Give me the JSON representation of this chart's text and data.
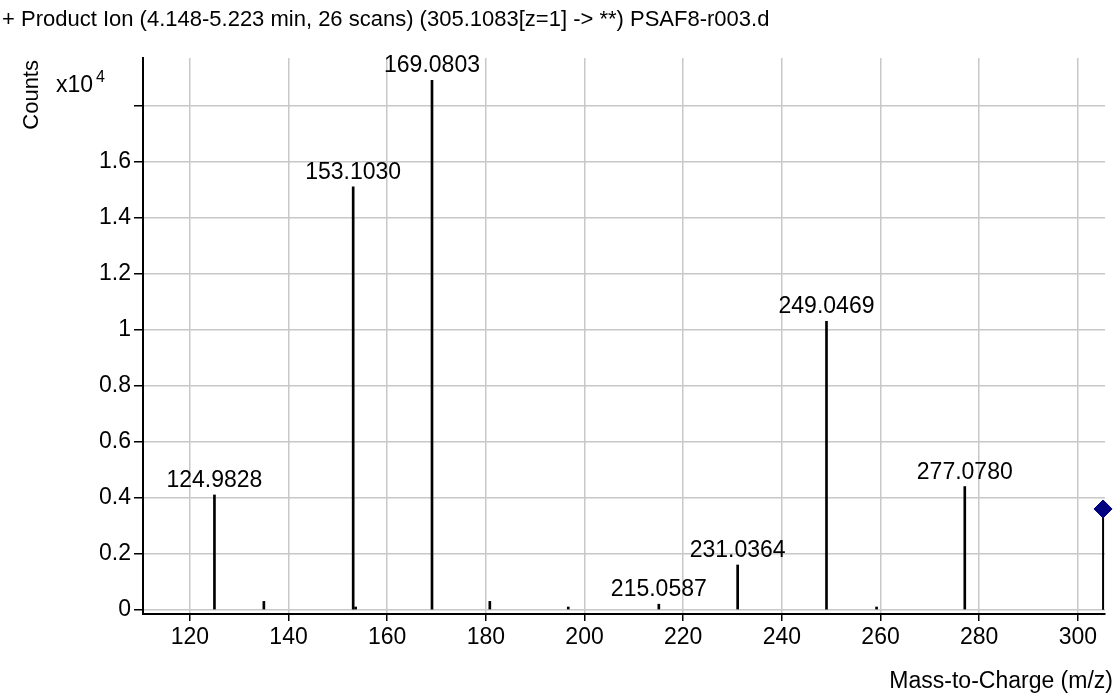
{
  "chart_data": {
    "type": "bar",
    "title": "+ Product Ion (4.148-5.223 min, 26 scans) (305.1083[z=1] -> **) PSAF8-r003.d",
    "xlabel": "Mass-to-Charge (m/z)",
    "ylabel": "Counts",
    "series": [
      {
        "color": "#000000",
        "x": [
          124.9828,
          135,
          153.103,
          153.6,
          169.0803,
          180.8,
          196.7,
          215.0587,
          231.0364,
          249.0469,
          259.2,
          277.078
        ],
        "values": [
          0.41,
          0.03,
          1.51,
          0.01,
          1.89,
          0.03,
          0.01,
          0.02,
          0.16,
          1.03,
          0.01,
          0.44
        ]
      },
      {
        "type": "lollipop",
        "color": "#000080",
        "marker": "diamond",
        "x": [
          305.1083
        ],
        "values": [
          0.36
        ]
      }
    ],
    "xlim": [
      110.5,
      305.5
    ],
    "xticks": [
      120,
      140,
      160,
      180,
      200,
      220,
      240,
      260,
      280,
      300
    ],
    "ylim": [
      -0.015,
      1.97
    ],
    "yticks": [
      0,
      0.2,
      0.4,
      0.6,
      0.8,
      1,
      1.2,
      1.4,
      1.6,
      {
        "value": 1.8,
        "label": null
      }
    ],
    "grid": true,
    "annotations": [
      "x10$^{4}$",
      {
        "text": "124.9828",
        "x": 124.9828,
        "y": 0.41
      },
      {
        "text": "153.1030",
        "x": 153.103,
        "y": 1.51
      },
      {
        "text": "169.0803",
        "x": 169.0803,
        "y": 1.89
      },
      {
        "text": "215.0587",
        "x": 215.0587,
        "y": 0.02
      },
      {
        "text": "231.0364",
        "x": 231.0364,
        "y": 0.16
      },
      {
        "text": "249.0469",
        "x": 249.0469,
        "y": 1.03
      },
      {
        "text": "277.0780",
        "x": 277.078,
        "y": 0.44
      }
    ]
  }
}
